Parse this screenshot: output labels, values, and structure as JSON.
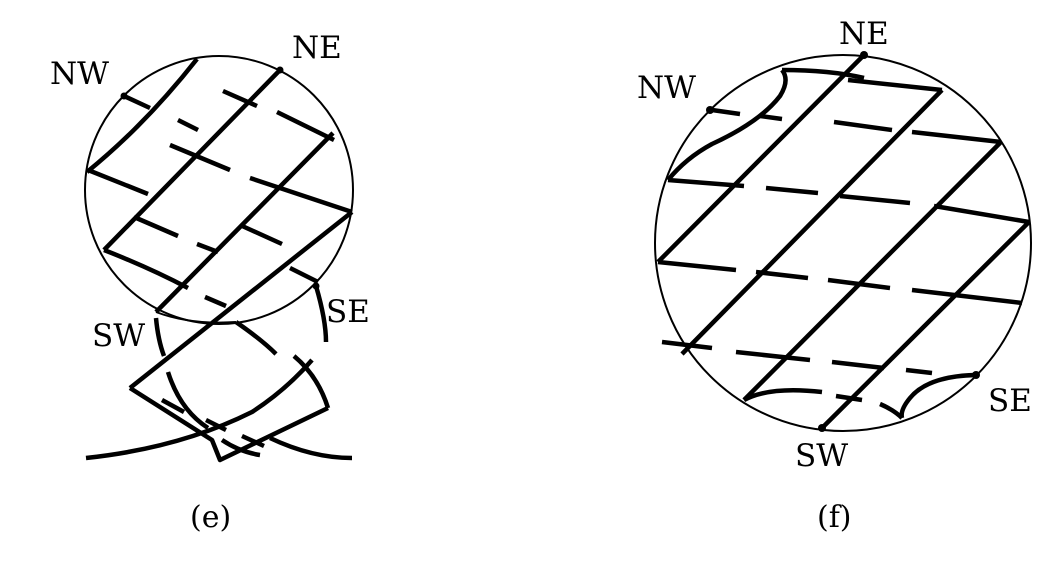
{
  "panels": [
    {
      "id": "e",
      "caption": "(e)",
      "labels": {
        "nw": "NW",
        "ne": "NE",
        "sw": "SW",
        "se": "SE"
      }
    },
    {
      "id": "f",
      "caption": "(f)",
      "labels": {
        "nw": "NW",
        "ne": "NE",
        "sw": "SW",
        "se": "SE"
      }
    }
  ],
  "colors": {
    "ink": "#000000",
    "background": "#ffffff"
  }
}
